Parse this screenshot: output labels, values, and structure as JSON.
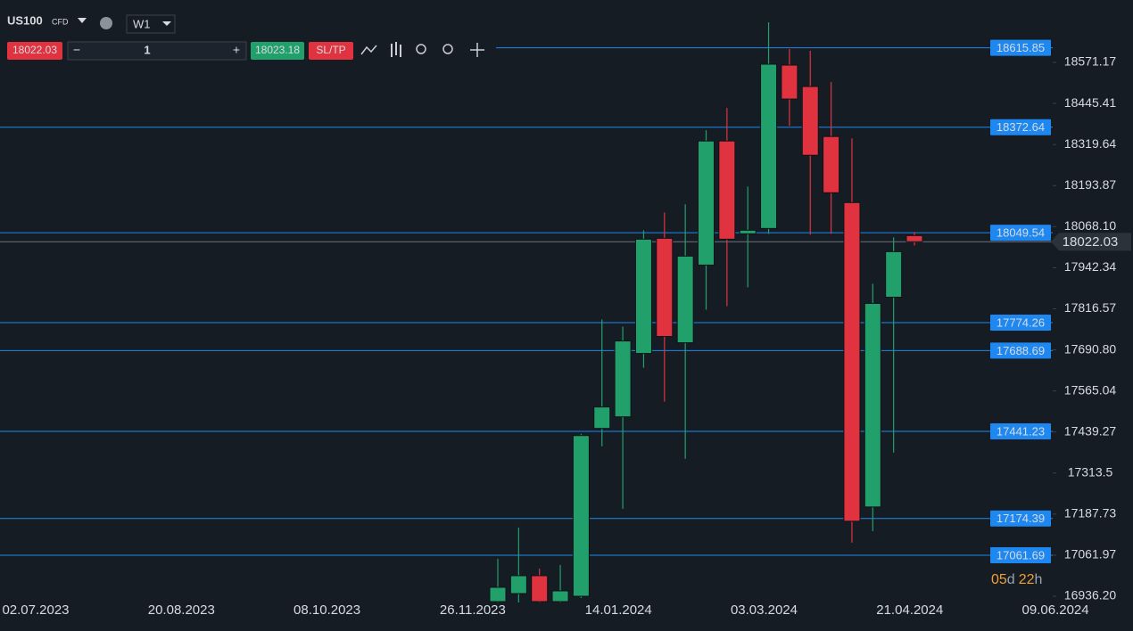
{
  "toolbar": {
    "symbol": "US100",
    "symbol_kind": "CFD",
    "timeframe": "W1",
    "sell_price": "18022.03",
    "quantity": "1",
    "buy_price": "18023.18",
    "sltp": "SL/TP"
  },
  "countdown": {
    "days": "05",
    "days_unit": "d",
    "hours": "22",
    "hours_unit": "h"
  },
  "chart_data": {
    "type": "candlestick",
    "open": [
      16919.8,
      16944.4,
      16999.1,
      16919.8,
      16936.2,
      17450.2,
      17485.7,
      17679.8,
      18032.5,
      17712.6,
      17950.5,
      18330.5,
      18046.2,
      18062.6,
      18562.9,
      18497.3,
      18344.2,
      18141.9,
      17209.6,
      17852.1,
      18040.7
    ],
    "high": [
      17051.0,
      17146.7,
      17021.0,
      17031.9,
      17433.8,
      17783.7,
      17761.9,
      18057.1,
      18111.8,
      18136.4,
      18363.3,
      18431.7,
      18191.1,
      18694.1,
      18612.1,
      18606.6,
      18511.0,
      18338.7,
      17893.1,
      18035.3,
      18051.7
    ],
    "low": [
      16917.0,
      16914.3,
      16917.0,
      16917.0,
      16930.7,
      17395.5,
      17204.1,
      17636.1,
      17532.2,
      17357.2,
      17813.8,
      17824.8,
      17882.2,
      18046.2,
      18377.0,
      18043.5,
      18046.2,
      17100.2,
      17135.8,
      17376.4,
      18010.6
    ],
    "close": [
      16963.5,
      16999.1,
      16919.8,
      16952.6,
      17428.3,
      17515.8,
      17718.1,
      18029.8,
      17731.8,
      17977.9,
      18330.5,
      18029.8,
      18057.1,
      18565.7,
      18459.1,
      18286.8,
      18172.0,
      17165.9,
      17833.0,
      17991.5,
      18022.03
    ],
    "up_color": "#22a06b",
    "down_color": "#e0333f",
    "ylim": [
      16917.1,
      18762.3
    ],
    "yticks": [
      18571.17,
      18445.41,
      18319.64,
      18193.87,
      {
        "value": 18068.1,
        "label": "18068.10"
      },
      17942.34,
      17816.57,
      {
        "value": 17690.8,
        "label": "17690.80"
      },
      17565.04,
      17439.27,
      17313.5,
      17187.73,
      17061.97,
      {
        "value": 16936.2,
        "label": "16936.20"
      }
    ],
    "x_tick_labels": [
      "02.07.2023",
      "20.08.2023",
      "08.10.2023",
      "26.11.2023",
      "14.01.2024",
      "03.03.2024",
      "21.04.2024",
      "09.06.2024"
    ],
    "levels": [
      18615.85,
      18372.64,
      18049.54,
      17774.26,
      17688.69,
      17441.23,
      17174.39,
      17061.69
    ],
    "level_color": "#1e88f0",
    "last_price": 18022.03
  }
}
